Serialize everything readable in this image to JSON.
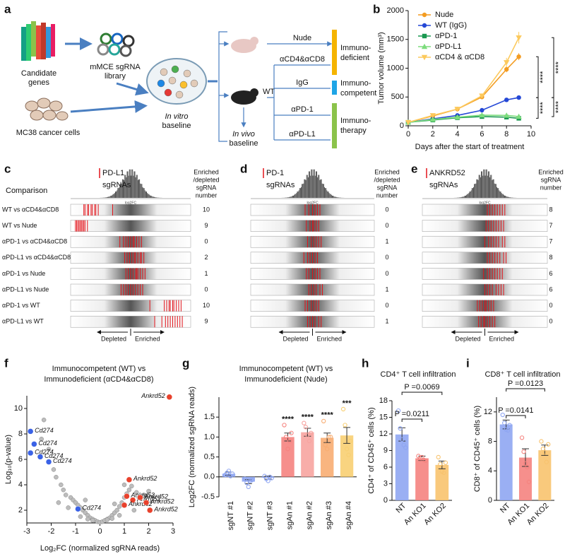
{
  "panel_labels": [
    "a",
    "b",
    "c",
    "d",
    "e",
    "f",
    "g",
    "h",
    "i"
  ],
  "diagram": {
    "candidate_genes": [
      "Candidate",
      "genes"
    ],
    "library": [
      "mMCE sgRNA",
      "library"
    ],
    "cells": "MC38 cancer cells",
    "in_vitro": [
      "In vitro",
      "baseline"
    ],
    "wt": "WT",
    "in_vivo": [
      "In vivo",
      "baseline"
    ],
    "arms": [
      "Nude",
      "αCD4&αCD8",
      "IgG",
      "αPD-1",
      "αPD-L1"
    ],
    "groups": [
      [
        "Immuno-",
        "deficient"
      ],
      [
        "Immuno-",
        "competent"
      ],
      [
        "Immuno-",
        "therapy"
      ]
    ]
  },
  "screens": {
    "comparison_header": "Comparison",
    "rows": [
      "WT vs αCD4&αCD8",
      "WT vs Nude",
      "αPD-1 vs αCD4&αCD8",
      "αPD-L1 vs αCD4&αCD8",
      "αPD-1 vs Nude",
      "αPD-L1 vs Nude",
      "αPD-1 vs WT",
      "αPD-L1 vs WT"
    ],
    "histogram_xlabel": "log2FC",
    "direction": [
      "Depleted",
      "Enriched"
    ],
    "xlim": [
      -5,
      5
    ],
    "hit_color": "#e3141b",
    "panels": [
      {
        "gene": "PD-L1",
        "suffix": "sgRNAs",
        "count_header": [
          "Enriched",
          "/depleted",
          "sgRNA",
          "number"
        ],
        "counts": [
          10,
          9,
          0,
          2,
          1,
          0,
          10,
          9
        ],
        "hits": [
          [
            -3.9,
            -3.8,
            -3.6,
            -3.5,
            -3.3,
            -3.2,
            -3.0,
            -2.9,
            -2.7,
            -1.5
          ],
          [
            -4.6,
            -4.5,
            -4.4,
            -4.3,
            -4.2,
            -4.1,
            -4.0,
            -3.9,
            -3.8,
            -3.6
          ],
          [
            -0.9,
            -0.6,
            -0.4,
            -0.2,
            0,
            0.2,
            0.3,
            0.5,
            0.7,
            0.9
          ],
          [
            -0.5,
            -0.3,
            -0.1,
            0.1,
            0.3,
            0.4,
            0.6,
            0.8,
            0.9,
            1.1
          ],
          [
            -0.4,
            -0.2,
            0,
            0.2,
            0.4,
            0.5,
            0.6,
            0.8,
            1.0,
            1.2
          ],
          [
            -0.8,
            -0.6,
            -0.4,
            -0.2,
            0,
            0.2,
            0.4,
            0.6,
            0.8,
            1.0
          ],
          [
            1.6,
            2.8,
            3.0,
            3.2,
            3.3,
            3.5,
            3.6,
            3.8,
            4.0,
            4.2
          ],
          [
            2.0,
            2.6,
            2.9,
            3.1,
            3.3,
            3.5,
            3.7,
            3.9,
            4.1,
            4.3
          ]
        ]
      },
      {
        "gene": "PD-1",
        "suffix": "sgRNAs",
        "count_header": [
          "Enriched",
          "/depleted",
          "sgRNA",
          "number"
        ],
        "counts": [
          0,
          0,
          1,
          0,
          0,
          1,
          0,
          1
        ],
        "hits": [
          [
            -0.6,
            -0.3,
            0,
            0.2,
            0.4,
            0.6
          ],
          [
            -0.5,
            -0.2,
            0,
            0.1,
            0.3,
            0.5
          ],
          [
            -0.4,
            -0.1,
            0.1,
            0.3,
            0.5,
            0.7
          ],
          [
            -0.7,
            -0.4,
            -0.2,
            0,
            0.2,
            0.4
          ],
          [
            -0.5,
            -0.3,
            0,
            0.2,
            0.4,
            0.6
          ],
          [
            -0.3,
            -0.1,
            0.1,
            0.3,
            0.6,
            0.8
          ],
          [
            -0.6,
            -0.4,
            -0.1,
            0.1,
            0.3,
            0.5
          ],
          [
            -0.4,
            -0.2,
            0,
            0.2,
            0.5,
            0.7
          ]
        ]
      },
      {
        "gene": "ANKRD52",
        "suffix": "sgRNAs",
        "count_header": [
          "Enriched",
          "sgRNA",
          "number"
        ],
        "counts": [
          8,
          7,
          7,
          8,
          6,
          6,
          0,
          0
        ],
        "hits": [
          [
            0.2,
            0.4,
            0.6,
            0.8,
            1.0,
            1.2,
            1.4,
            1.6
          ],
          [
            0.1,
            0.3,
            0.5,
            0.7,
            0.9,
            1.1,
            1.3,
            1.5
          ],
          [
            0,
            0.3,
            0.5,
            0.7,
            0.9,
            1.1,
            1.4,
            1.6
          ],
          [
            0.2,
            0.4,
            0.6,
            0.8,
            1.0,
            1.2,
            1.5,
            1.7
          ],
          [
            -0.1,
            0.2,
            0.4,
            0.6,
            0.8,
            1.0,
            1.2,
            1.4
          ],
          [
            0,
            0.2,
            0.4,
            0.6,
            0.9,
            1.1,
            1.3,
            1.5
          ],
          [
            -0.6,
            -0.4,
            -0.2,
            0,
            0.1,
            0.3,
            0.5,
            0.7
          ],
          [
            -0.5,
            -0.3,
            -0.1,
            0,
            0.2,
            0.4,
            0.6,
            0.8
          ]
        ]
      }
    ]
  },
  "chart_data": [
    {
      "type": "line",
      "x": [
        0,
        2,
        4,
        6,
        8,
        9
      ],
      "xlim": [
        0,
        10
      ],
      "xticks": [
        0,
        2,
        4,
        6,
        8,
        10
      ],
      "ylim": [
        0,
        2000
      ],
      "yticks": [
        0,
        500,
        1000,
        1500,
        2000
      ],
      "xlabel": "Days after the start of treatment",
      "ylabel": "Tumor volume (mm³)",
      "legend": "top-left",
      "significance": [
        "****",
        "****",
        "****",
        "****"
      ],
      "series": [
        {
          "name": "Nude",
          "color": "#f39c21",
          "marker": "circle",
          "values": [
            60,
            170,
            290,
            500,
            980,
            1200
          ],
          "errors": [
            10,
            20,
            30,
            30,
            50,
            60
          ]
        },
        {
          "name": "WT (IgG)",
          "color": "#2548d6",
          "marker": "circle",
          "values": [
            60,
            120,
            180,
            270,
            450,
            490
          ],
          "errors": [
            5,
            10,
            15,
            20,
            30,
            20
          ]
        },
        {
          "name": "αPD-1",
          "color": "#1a9850",
          "marker": "square",
          "values": [
            60,
            100,
            140,
            160,
            150,
            130
          ],
          "errors": [
            5,
            10,
            15,
            15,
            20,
            25
          ]
        },
        {
          "name": "αPD-L1",
          "color": "#7ddc7d",
          "marker": "triangle",
          "values": [
            60,
            110,
            150,
            185,
            180,
            160
          ],
          "errors": [
            5,
            10,
            15,
            15,
            20,
            25
          ]
        },
        {
          "name": "αCD4 & αCD8",
          "color": "#fcc95c",
          "marker": "triangle-down",
          "values": [
            60,
            180,
            290,
            520,
            1100,
            1530
          ],
          "errors": [
            10,
            20,
            40,
            40,
            80,
            100
          ]
        }
      ]
    },
    {
      "type": "scatter",
      "title": [
        "Immunocompetent (WT) vs",
        "Immunodeficient (αCD4&αCD8)"
      ],
      "xlabel": "Log₂FC (normalized sgRNA reads)",
      "ylabel": "Log₁₀(p-value)",
      "xlim": [
        -3,
        3
      ],
      "xticks": [
        -3,
        -2,
        -1,
        0,
        1,
        2,
        3
      ],
      "ylim": [
        1,
        11
      ],
      "yticks": [
        2,
        4,
        6,
        8,
        10
      ],
      "background": {
        "color": "#bdbdbd",
        "x": [
          -2.3,
          -2.1,
          -1.9,
          -1.8,
          -1.6,
          -1.5,
          -1.4,
          -1.2,
          -1.1,
          -1.0,
          -0.9,
          -0.8,
          -0.7,
          -0.6,
          -0.5,
          -0.4,
          -0.3,
          -0.2,
          -0.1,
          0,
          0.1,
          0.2,
          0.3,
          0.4,
          0.5,
          0.6,
          0.7,
          0.8,
          0.9,
          1.0,
          1.1,
          1.2,
          1.3,
          1.5,
          1.6,
          1.8,
          2.0,
          -0.8,
          -0.5,
          -0.3,
          0.3,
          0.5,
          0.8,
          -1.3,
          -1.7,
          1.4,
          -2.4,
          -0.6,
          0.6,
          1.0
        ],
        "y": [
          9.1,
          6.8,
          5.2,
          4.6,
          4.0,
          3.6,
          3.2,
          3.0,
          2.8,
          2.6,
          2.4,
          2.2,
          2.0,
          1.8,
          1.6,
          1.4,
          1.3,
          1.2,
          1.1,
          1.05,
          1.1,
          1.2,
          1.3,
          1.4,
          1.6,
          1.8,
          2.0,
          2.3,
          2.6,
          3.0,
          3.3,
          3.6,
          3.9,
          3.4,
          3.0,
          3.2,
          3.5,
          1.5,
          1.3,
          1.2,
          1.25,
          1.35,
          1.6,
          2.2,
          2.6,
          2.0,
          7.6,
          2.8,
          2.5,
          4.0
        ]
      },
      "groups": [
        {
          "color": "#3a62e6",
          "x": [
            -2.85,
            -2.85,
            -2.7,
            -2.45,
            -2.1,
            -0.9
          ],
          "y": [
            8.2,
            6.5,
            7.2,
            6.2,
            5.8,
            2.1
          ],
          "labels": [
            "Cd274",
            "Cd274",
            "Cd274",
            "Cd274",
            "Cd274",
            "Cd274"
          ]
        },
        {
          "color": "#e8412c",
          "x": [
            2.85,
            1.2,
            1.1,
            1.35,
            1.65,
            1.0,
            1.9,
            2.05
          ],
          "y": [
            10.9,
            4.4,
            3.1,
            2.8,
            3.0,
            2.4,
            2.6,
            2.0
          ],
          "labels": [
            "Ankrd52",
            "Ankrd52",
            "Ankrd52",
            "Ankrd52",
            "Ankrd52",
            "Ankrd52",
            "Ankrd52",
            "Ankrd52"
          ]
        }
      ]
    },
    {
      "type": "bar",
      "title": [
        "Immunocompetent (WT) vs",
        "Immunodeficient (Nude)"
      ],
      "ylabel": "Log2FC (normalized sgRNA reads)",
      "ylim": [
        -0.5,
        2.0
      ],
      "yticks": [
        -0.5,
        {
          "value": 0,
          "label": "0.0"
        },
        0.5,
        {
          "value": 1,
          "label": "1.0"
        },
        1.5
      ],
      "categories": [
        "sgNT #1",
        "sgNT #2",
        "sgNT #3",
        "sgAn #1",
        "sgAn #2",
        "sgAn #3",
        "sgAn #4"
      ],
      "values": [
        0.08,
        -0.12,
        -0.02,
        1.0,
        1.12,
        0.98,
        1.04
      ],
      "errors": [
        0.04,
        0.05,
        0.04,
        0.1,
        0.1,
        0.12,
        0.2
      ],
      "colors": [
        "#8fa6f2",
        "#8fa6f2",
        "#8fa6f2",
        "#f5837f",
        "#f7a4a0",
        "#f8ad72",
        "#f8cf72"
      ],
      "points": [
        [
          0.05,
          0.1,
          0.15,
          0.02,
          0.08
        ],
        [
          -0.05,
          -0.15,
          -0.25,
          -0.1,
          -0.08
        ],
        [
          0.02,
          -0.05,
          -0.1,
          0.0,
          -0.03
        ],
        [
          1.3,
          1.0,
          0.7,
          0.9,
          1.1
        ],
        [
          1.35,
          1.25,
          1.05,
          0.9,
          1.1
        ],
        [
          1.4,
          0.8,
          0.7,
          1.0,
          1.0
        ],
        [
          1.7,
          1.3,
          0.7,
          0.55,
          0.9
        ]
      ],
      "stars": [
        null,
        null,
        null,
        "****",
        "****",
        "****",
        "***"
      ]
    },
    {
      "type": "bar",
      "title": "CD4⁺ T cell infiltration",
      "ylabel": "CD4⁺ of CD45⁺ cells (%)",
      "ylim": [
        0,
        18
      ],
      "yticks": [
        0,
        3,
        6,
        9,
        12,
        15,
        18
      ],
      "categories": [
        "NT",
        "An KO1",
        "An KO2"
      ],
      "values": [
        11.9,
        7.6,
        6.4
      ],
      "errors": [
        1.2,
        0.4,
        0.7
      ],
      "colors": [
        "#8fa6f2",
        "#f5837f",
        "#f8c36e"
      ],
      "points": [
        [
          16.2,
          13,
          11,
          10,
          9.5
        ],
        [
          8,
          7.6,
          7.8,
          7.3,
          7.2
        ],
        [
          7.8,
          6.5,
          5.2,
          5,
          6.8
        ]
      ],
      "comparisons": [
        "P =0.0211",
        "P =0.0069"
      ]
    },
    {
      "type": "bar",
      "title": "CD8⁺ T cell infiltration",
      "ylabel": "CD8⁺ of CD45⁺ cells (%)",
      "ylim": [
        0,
        14
      ],
      "yticks": [
        0,
        4,
        8,
        12
      ],
      "categories": [
        "NT",
        "An KO1",
        "An KO2"
      ],
      "values": [
        10.3,
        5.8,
        6.8
      ],
      "errors": [
        0.6,
        1.2,
        0.7
      ],
      "colors": [
        "#8fa6f2",
        "#f5837f",
        "#f8c36e"
      ],
      "points": [
        [
          11.6,
          10.5,
          9.6,
          9.5,
          10.2
        ],
        [
          8.5,
          6.6,
          5,
          4.5,
          2.5
        ],
        [
          8,
          7,
          6.5,
          5.2,
          7.6
        ]
      ],
      "comparisons": [
        "P =0.0141",
        "P =0.0123"
      ]
    }
  ]
}
